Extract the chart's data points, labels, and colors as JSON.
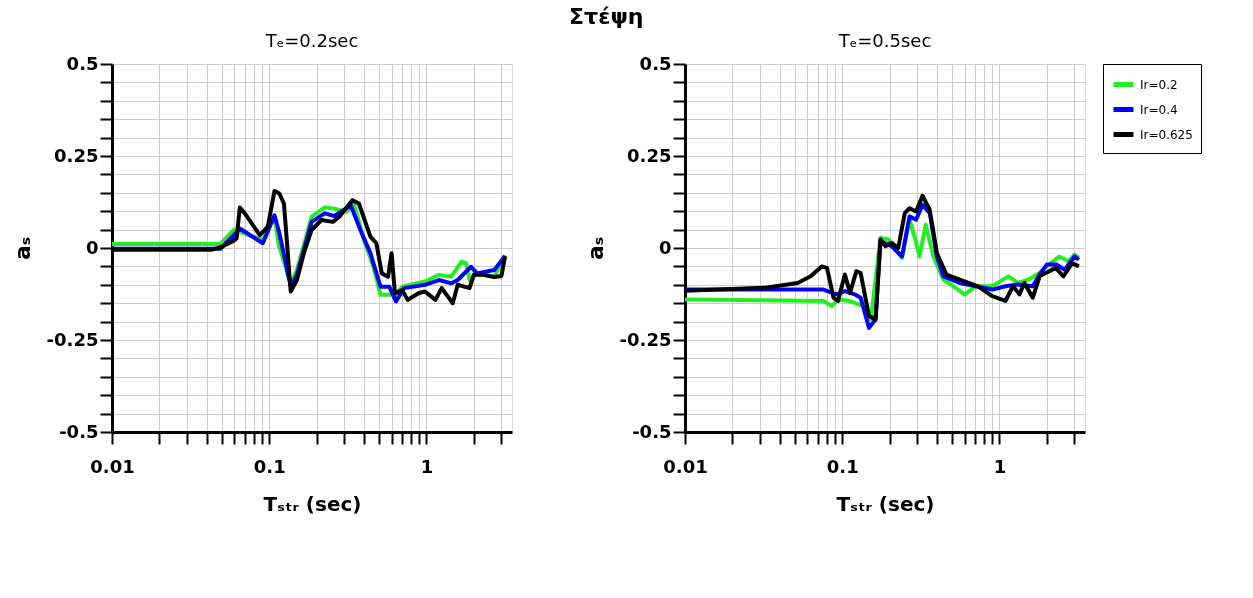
{
  "chart_data": [
    {
      "type": "line",
      "title": "Tₑ=0.2sec",
      "xlabel": "Tₛₜᵣ (sec)",
      "ylabel": "aₛ",
      "annotations": [
        "Στέψη"
      ],
      "log": "x",
      "grid": true,
      "legend": false,
      "marker": "none",
      "line_style": "solid",
      "xlim": [
        0.01,
        3.5
      ],
      "ylim": [
        -0.5,
        0.5
      ],
      "xticks": [
        0.01,
        {
          "value": 0.02,
          "label": null
        },
        {
          "value": 0.03,
          "label": null
        },
        {
          "value": 0.04,
          "label": null
        },
        {
          "value": 0.05,
          "label": null
        },
        {
          "value": 0.06,
          "label": null
        },
        {
          "value": 0.07,
          "label": null
        },
        {
          "value": 0.08,
          "label": null
        },
        {
          "value": 0.09,
          "label": null
        },
        0.1,
        {
          "value": 0.2,
          "label": null
        },
        {
          "value": 0.3,
          "label": null
        },
        {
          "value": 0.4,
          "label": null
        },
        {
          "value": 0.5,
          "label": null
        },
        {
          "value": 0.6,
          "label": null
        },
        {
          "value": 0.7,
          "label": null
        },
        {
          "value": 0.8,
          "label": null
        },
        {
          "value": 0.9,
          "label": null
        },
        1,
        {
          "value": 2,
          "label": null
        },
        {
          "value": 3,
          "label": null
        }
      ],
      "yticks": [
        -0.5,
        {
          "value": -0.45,
          "label": null
        },
        {
          "value": -0.4,
          "label": null
        },
        {
          "value": -0.35,
          "label": null
        },
        {
          "value": -0.3,
          "label": null
        },
        -0.25,
        {
          "value": -0.2,
          "label": null
        },
        {
          "value": -0.15,
          "label": null
        },
        {
          "value": -0.1,
          "label": null
        },
        {
          "value": -0.05,
          "label": null
        },
        0,
        {
          "value": 0.05,
          "label": null
        },
        {
          "value": 0.1,
          "label": null
        },
        {
          "value": 0.15,
          "label": null
        },
        {
          "value": 0.2,
          "label": null
        },
        0.25,
        {
          "value": 0.3,
          "label": null
        },
        {
          "value": 0.35,
          "label": null
        },
        {
          "value": 0.4,
          "label": null
        },
        {
          "value": 0.45,
          "label": null
        },
        0.5
      ],
      "series": [
        {
          "color": "#22ee22",
          "x": [
            0.01,
            0.049,
            0.0595,
            0.065,
            0.091,
            0.108,
            0.115,
            0.137,
            0.15,
            0.186,
            0.225,
            0.26,
            0.31,
            0.345,
            0.4,
            0.46,
            0.51,
            0.64,
            0.7,
            0.98,
            1.2,
            1.44,
            1.67,
            1.79,
            1.88,
            2.1,
            2.7,
            3.16
          ],
          "values": [
            0.011,
            0.011,
            0.049,
            0.044,
            0.022,
            0.085,
            0.008,
            -0.096,
            -0.06,
            0.085,
            0.11,
            0.107,
            0.098,
            0.121,
            0.022,
            -0.051,
            -0.127,
            -0.127,
            -0.105,
            -0.091,
            -0.073,
            -0.078,
            -0.037,
            -0.042,
            -0.087,
            -0.069,
            -0.078,
            -0.019
          ]
        },
        {
          "color": "#0000ff",
          "x": [
            0.01,
            0.049,
            0.0595,
            0.065,
            0.091,
            0.108,
            0.116,
            0.137,
            0.15,
            0.186,
            0.225,
            0.26,
            0.33,
            0.38,
            0.44,
            0.51,
            0.58,
            0.64,
            0.72,
            0.98,
            1.2,
            1.44,
            1.58,
            1.92,
            2.1,
            2.7,
            3.16
          ],
          "values": [
            -0.002,
            -0.002,
            0.035,
            0.053,
            0.013,
            0.089,
            0.04,
            -0.105,
            -0.073,
            0.071,
            0.094,
            0.087,
            0.116,
            0.049,
            -0.014,
            -0.105,
            -0.105,
            -0.145,
            -0.109,
            -0.1,
            -0.087,
            -0.096,
            -0.087,
            -0.051,
            -0.069,
            -0.06,
            -0.022
          ]
        },
        {
          "color": "#000000",
          "x": [
            0.01,
            0.0427,
            0.049,
            0.0595,
            0.062,
            0.065,
            0.07,
            0.087,
            0.098,
            0.108,
            0.116,
            0.124,
            0.137,
            0.15,
            0.166,
            0.186,
            0.215,
            0.254,
            0.279,
            0.338,
            0.372,
            0.44,
            0.48,
            0.52,
            0.57,
            0.6,
            0.63,
            0.7,
            0.76,
            0.89,
            0.98,
            1.14,
            1.25,
            1.47,
            1.58,
            1.88,
            2.0,
            2.3,
            2.7,
            3.0,
            3.16
          ],
          "values": [
            -0.005,
            -0.005,
            0.002,
            0.02,
            0.026,
            0.11,
            0.094,
            0.035,
            0.058,
            0.155,
            0.148,
            0.121,
            -0.118,
            -0.087,
            -0.014,
            0.049,
            0.076,
            0.071,
            0.085,
            0.13,
            0.121,
            0.031,
            0.013,
            -0.069,
            -0.078,
            -0.014,
            -0.123,
            -0.114,
            -0.141,
            -0.123,
            -0.118,
            -0.141,
            -0.109,
            -0.15,
            -0.1,
            -0.109,
            -0.073,
            -0.073,
            -0.079,
            -0.076,
            -0.023
          ]
        }
      ]
    },
    {
      "type": "line",
      "title": "Tₑ=0.5sec",
      "xlabel": "Tₛₜᵣ (sec)",
      "ylabel": "aₛ",
      "log": "x",
      "grid": true,
      "legend": "right",
      "marker": "none",
      "line_style": "solid",
      "xlim": [
        0.01,
        3.5
      ],
      "ylim": [
        -0.5,
        0.5
      ],
      "xticks": [
        0.01,
        {
          "value": 0.02,
          "label": null
        },
        {
          "value": 0.03,
          "label": null
        },
        {
          "value": 0.04,
          "label": null
        },
        {
          "value": 0.05,
          "label": null
        },
        {
          "value": 0.06,
          "label": null
        },
        {
          "value": 0.07,
          "label": null
        },
        {
          "value": 0.08,
          "label": null
        },
        {
          "value": 0.09,
          "label": null
        },
        0.1,
        {
          "value": 0.2,
          "label": null
        },
        {
          "value": 0.3,
          "label": null
        },
        {
          "value": 0.4,
          "label": null
        },
        {
          "value": 0.5,
          "label": null
        },
        {
          "value": 0.6,
          "label": null
        },
        {
          "value": 0.7,
          "label": null
        },
        {
          "value": 0.8,
          "label": null
        },
        {
          "value": 0.9,
          "label": null
        },
        1,
        {
          "value": 2,
          "label": null
        },
        {
          "value": 3,
          "label": null
        }
      ],
      "yticks": [
        -0.5,
        {
          "value": -0.45,
          "label": null
        },
        {
          "value": -0.4,
          "label": null
        },
        {
          "value": -0.35,
          "label": null
        },
        {
          "value": -0.3,
          "label": null
        },
        -0.25,
        {
          "value": -0.2,
          "label": null
        },
        {
          "value": -0.15,
          "label": null
        },
        {
          "value": -0.1,
          "label": null
        },
        {
          "value": -0.05,
          "label": null
        },
        0,
        {
          "value": 0.05,
          "label": null
        },
        {
          "value": 0.1,
          "label": null
        },
        {
          "value": 0.15,
          "label": null
        },
        {
          "value": 0.2,
          "label": null
        },
        0.25,
        {
          "value": 0.3,
          "label": null
        },
        {
          "value": 0.35,
          "label": null
        },
        {
          "value": 0.4,
          "label": null
        },
        {
          "value": 0.45,
          "label": null
        },
        0.5
      ],
      "series": [
        {
          "name": "Ir=0.2",
          "color": "#22ee22",
          "x": [
            0.01,
            0.076,
            0.086,
            0.094,
            0.112,
            0.135,
            0.152,
            0.175,
            0.197,
            0.24,
            0.268,
            0.29,
            0.31,
            0.34,
            0.38,
            0.44,
            0.51,
            0.6,
            0.71,
            0.9,
            1.14,
            1.31,
            1.52,
            1.8,
            2.0,
            2.4,
            2.75,
            3.0,
            3.2
          ],
          "values": [
            -0.14,
            -0.144,
            -0.158,
            -0.14,
            -0.144,
            -0.158,
            -0.194,
            0.027,
            0.023,
            -0.027,
            0.077,
            0.027,
            -0.023,
            0.063,
            -0.023,
            -0.086,
            -0.104,
            -0.126,
            -0.104,
            -0.104,
            -0.077,
            -0.095,
            -0.086,
            -0.068,
            -0.05,
            -0.023,
            -0.036,
            -0.018,
            -0.027
          ]
        },
        {
          "name": "Ir=0.4",
          "color": "#0000ff",
          "x": [
            0.01,
            0.076,
            0.092,
            0.104,
            0.12,
            0.131,
            0.148,
            0.163,
            0.175,
            0.206,
            0.24,
            0.268,
            0.295,
            0.324,
            0.36,
            0.4,
            0.44,
            0.56,
            0.9,
            1.09,
            1.31,
            1.63,
            1.8,
            2.0,
            2.3,
            2.6,
            3.0,
            3.2
          ],
          "values": [
            -0.113,
            -0.113,
            -0.126,
            -0.117,
            -0.126,
            -0.135,
            -0.217,
            -0.194,
            0.018,
            0.005,
            -0.023,
            0.086,
            0.077,
            0.117,
            0.095,
            -0.023,
            -0.077,
            -0.095,
            -0.113,
            -0.104,
            -0.099,
            -0.104,
            -0.072,
            -0.045,
            -0.045,
            -0.059,
            -0.023,
            -0.032
          ]
        },
        {
          "name": "Ir=0.625",
          "color": "#000000",
          "x": [
            0.01,
            0.0325,
            0.052,
            0.063,
            0.074,
            0.08,
            0.088,
            0.094,
            0.104,
            0.112,
            0.123,
            0.131,
            0.148,
            0.163,
            0.175,
            0.188,
            0.206,
            0.227,
            0.25,
            0.268,
            0.295,
            0.324,
            0.36,
            0.4,
            0.46,
            0.56,
            0.73,
            0.9,
            1.09,
            1.22,
            1.34,
            1.44,
            1.63,
            1.8,
            1.97,
            2.28,
            2.55,
            2.9,
            3.2
          ],
          "values": [
            -0.116,
            -0.108,
            -0.095,
            -0.077,
            -0.05,
            -0.054,
            -0.135,
            -0.144,
            -0.072,
            -0.122,
            -0.063,
            -0.068,
            -0.185,
            -0.194,
            0.023,
            0.005,
            0.014,
            0,
            0.095,
            0.108,
            0.099,
            0.142,
            0.104,
            -0.014,
            -0.072,
            -0.086,
            -0.104,
            -0.131,
            -0.144,
            -0.104,
            -0.126,
            -0.095,
            -0.135,
            -0.077,
            -0.068,
            -0.054,
            -0.077,
            -0.041,
            -0.05
          ]
        }
      ]
    }
  ]
}
